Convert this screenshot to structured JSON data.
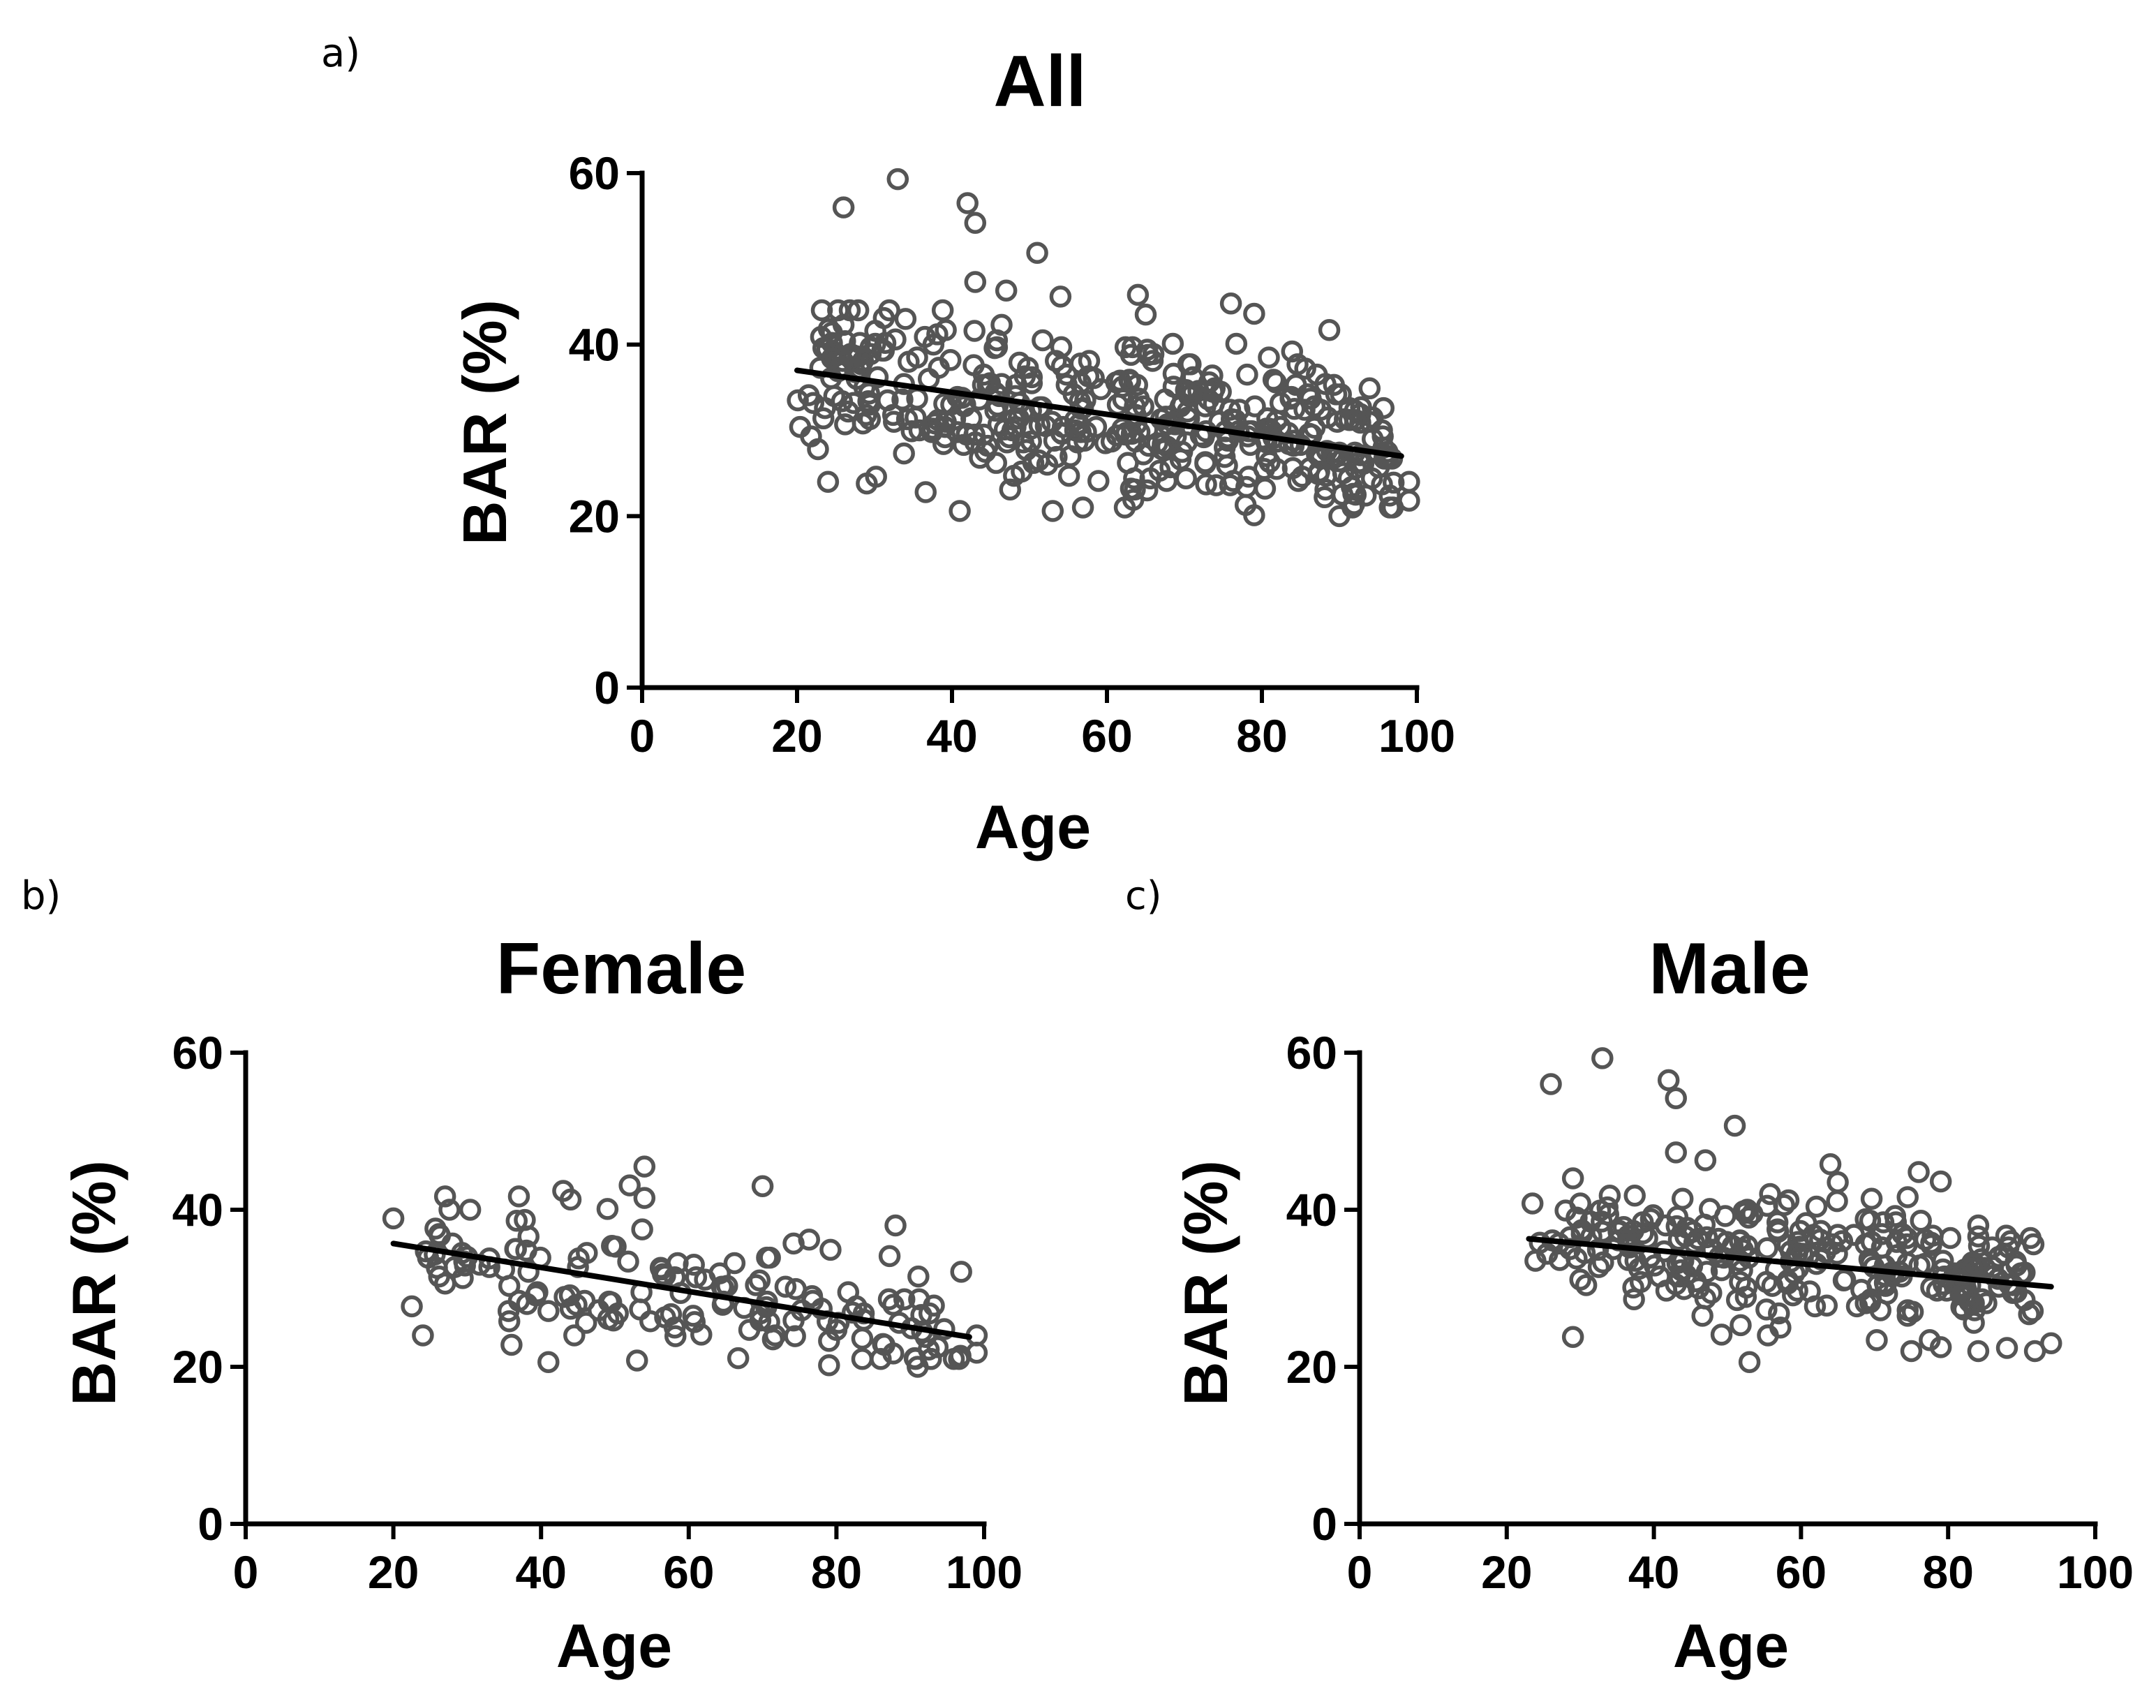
{
  "figure": {
    "panel_labels": [
      "a)",
      "b)",
      "c)"
    ]
  },
  "chart_data": [
    {
      "type": "scatter",
      "panel": "a)",
      "title": "All",
      "xlabel": "Age",
      "ylabel": "BAR (%)",
      "xlim": [
        0,
        100
      ],
      "ylim": [
        0,
        60
      ],
      "xticks": [
        0,
        20,
        40,
        60,
        80,
        100
      ],
      "yticks": [
        0,
        20,
        40,
        60
      ],
      "grid": false,
      "regression": {
        "x": [
          20,
          98
        ],
        "y": [
          37,
          27
        ]
      },
      "series": [
        {
          "name": "All",
          "marker": "open-circle",
          "outliers": [
            [
              33,
              59.3
            ],
            [
              26,
              56
            ],
            [
              42,
              56.5
            ],
            [
              43,
              54.2
            ],
            [
              51,
              50.7
            ],
            [
              43,
              47.3
            ],
            [
              47,
              46.3
            ],
            [
              54,
              45.6
            ],
            [
              64,
              45.8
            ],
            [
              65,
              43.5
            ],
            [
              76,
              44.8
            ],
            [
              79,
              43.6
            ],
            [
              24,
              24
            ],
            [
              29,
              23.8
            ],
            [
              41,
              20.6
            ],
            [
              53,
              20.6
            ],
            [
              79,
              20.1
            ],
            [
              90,
              20.0
            ],
            [
              99,
              24.0
            ],
            [
              99,
              21.8
            ]
          ],
          "cluster": {
            "n": 420,
            "x_range": [
              20,
              97
            ],
            "trend": [
              [
                20,
                37
              ],
              [
                98,
                27
              ]
            ],
            "spread": 4.8,
            "y_range": [
              21,
              44
            ],
            "seed": 11
          }
        }
      ]
    },
    {
      "type": "scatter",
      "panel": "b)",
      "title": "Female",
      "xlabel": "Age",
      "ylabel": "BAR (%)",
      "xlim": [
        0,
        100
      ],
      "ylim": [
        0,
        60
      ],
      "xticks": [
        0,
        20,
        40,
        60,
        80,
        100
      ],
      "yticks": [
        0,
        20,
        40,
        60
      ],
      "grid": false,
      "regression": {
        "x": [
          20,
          98
        ],
        "y": [
          35.7,
          23.8
        ]
      },
      "series": [
        {
          "name": "Female",
          "marker": "open-circle",
          "outliers": [
            [
              20,
              38.9
            ],
            [
              27,
              41.7
            ],
            [
              37,
              41.7
            ],
            [
              43,
              42.4
            ],
            [
              44,
              41.3
            ],
            [
              49,
              40.1
            ],
            [
              52,
              43.1
            ],
            [
              54,
              45.5
            ],
            [
              54,
              41.5
            ],
            [
              70,
              43.0
            ],
            [
              88,
              38.0
            ],
            [
              24,
              24.0
            ],
            [
              36,
              22.8
            ],
            [
              41,
              20.6
            ],
            [
              53,
              20.8
            ],
            [
              79,
              20.2
            ],
            [
              91,
              20.0
            ],
            [
              99,
              24.0
            ],
            [
              99,
              21.8
            ]
          ],
          "cluster": {
            "n": 150,
            "x_range": [
              21,
              97
            ],
            "trend": [
              [
                20,
                35.7
              ],
              [
                98,
                23.8
              ]
            ],
            "spread": 3.6,
            "y_range": [
              21,
              40
            ],
            "seed": 23
          }
        }
      ]
    },
    {
      "type": "scatter",
      "panel": "c)",
      "title": "Male",
      "xlabel": "Age",
      "ylabel": "BAR (%)",
      "xlim": [
        0,
        100
      ],
      "ylim": [
        0,
        60
      ],
      "xticks": [
        0,
        20,
        40,
        60,
        80,
        100
      ],
      "yticks": [
        0,
        20,
        40,
        60
      ],
      "grid": false,
      "regression": {
        "x": [
          23,
          94
        ],
        "y": [
          36.3,
          30.2
        ]
      },
      "series": [
        {
          "name": "Male",
          "marker": "open-circle",
          "outliers": [
            [
              33,
              59.3
            ],
            [
              26,
              56
            ],
            [
              42,
              56.5
            ],
            [
              43,
              54.2
            ],
            [
              51,
              50.7
            ],
            [
              43,
              47.3
            ],
            [
              47,
              46.3
            ],
            [
              64,
              45.8
            ],
            [
              65,
              43.5
            ],
            [
              76,
              44.8
            ],
            [
              79,
              43.6
            ],
            [
              29,
              23.8
            ],
            [
              53,
              20.6
            ],
            [
              75,
              22.0
            ],
            [
              88,
              22.4
            ],
            [
              94,
              23.0
            ],
            [
              79,
              22.5
            ]
          ],
          "cluster": {
            "n": 280,
            "x_range": [
              23,
              92
            ],
            "trend": [
              [
                23,
                36.3
              ],
              [
                94,
                30.2
              ]
            ],
            "spread": 4.0,
            "y_range": [
              22,
              44
            ],
            "seed": 37
          }
        }
      ]
    }
  ]
}
